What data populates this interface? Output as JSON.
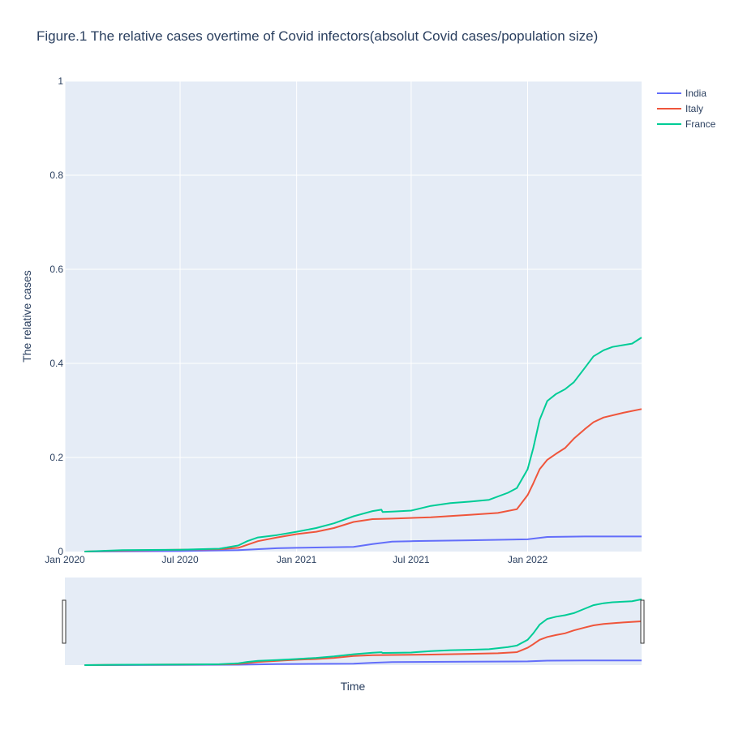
{
  "chart_data": {
    "type": "line",
    "title": "Figure.1 The relative cases overtime of Covid infectors(absolut Covid cases/population size)",
    "xlabel": "Time",
    "ylabel": "The relative cases",
    "xlim": [
      "2020-01-01",
      "2022-06-30"
    ],
    "ylim": [
      0,
      1
    ],
    "x_ticks": [
      {
        "date": "2020-01-01",
        "label": "Jan 2020"
      },
      {
        "date": "2020-07-01",
        "label": "Jul 2020"
      },
      {
        "date": "2021-01-01",
        "label": "Jan 2021"
      },
      {
        "date": "2021-07-01",
        "label": "Jul 2021"
      },
      {
        "date": "2022-01-01",
        "label": "Jan 2022"
      }
    ],
    "y_ticks": [
      {
        "value": 0,
        "label": "0"
      },
      {
        "value": 0.2,
        "label": "0.2"
      },
      {
        "value": 0.4,
        "label": "0.4"
      },
      {
        "value": 0.6,
        "label": "0.6"
      },
      {
        "value": 0.8,
        "label": "0.8"
      },
      {
        "value": 1,
        "label": "1"
      }
    ],
    "grid": true,
    "legend_position": "top-right",
    "range_slider": true,
    "series": [
      {
        "name": "India",
        "color": "#636efa",
        "points": [
          [
            "2020-02-01",
            0
          ],
          [
            "2020-07-01",
            0.001
          ],
          [
            "2020-10-01",
            0.003
          ],
          [
            "2020-12-01",
            0.007
          ],
          [
            "2021-01-01",
            0.008
          ],
          [
            "2021-04-01",
            0.01
          ],
          [
            "2021-05-01",
            0.016
          ],
          [
            "2021-06-01",
            0.021
          ],
          [
            "2021-07-01",
            0.022
          ],
          [
            "2021-10-01",
            0.024
          ],
          [
            "2022-01-01",
            0.026
          ],
          [
            "2022-02-01",
            0.031
          ],
          [
            "2022-04-01",
            0.032
          ],
          [
            "2022-06-30",
            0.032
          ]
        ]
      },
      {
        "name": "Italy",
        "color": "#ef553b",
        "points": [
          [
            "2020-02-01",
            0
          ],
          [
            "2020-04-01",
            0.002
          ],
          [
            "2020-07-01",
            0.004
          ],
          [
            "2020-09-01",
            0.005
          ],
          [
            "2020-10-01",
            0.008
          ],
          [
            "2020-11-01",
            0.022
          ],
          [
            "2020-12-01",
            0.03
          ],
          [
            "2021-01-01",
            0.037
          ],
          [
            "2021-02-01",
            0.042
          ],
          [
            "2021-03-01",
            0.05
          ],
          [
            "2021-04-01",
            0.063
          ],
          [
            "2021-05-01",
            0.069
          ],
          [
            "2021-06-01",
            0.07
          ],
          [
            "2021-08-01",
            0.073
          ],
          [
            "2021-10-01",
            0.078
          ],
          [
            "2021-11-15",
            0.082
          ],
          [
            "2021-12-15",
            0.09
          ],
          [
            "2022-01-01",
            0.12
          ],
          [
            "2022-01-10",
            0.145
          ],
          [
            "2022-01-20",
            0.175
          ],
          [
            "2022-02-01",
            0.195
          ],
          [
            "2022-02-15",
            0.208
          ],
          [
            "2022-03-01",
            0.22
          ],
          [
            "2022-03-15",
            0.24
          ],
          [
            "2022-04-01",
            0.26
          ],
          [
            "2022-04-15",
            0.275
          ],
          [
            "2022-05-01",
            0.285
          ],
          [
            "2022-06-01",
            0.295
          ],
          [
            "2022-06-30",
            0.303
          ]
        ]
      },
      {
        "name": "France",
        "color": "#00cc96",
        "points": [
          [
            "2020-02-01",
            0
          ],
          [
            "2020-04-01",
            0.003
          ],
          [
            "2020-07-01",
            0.004
          ],
          [
            "2020-09-01",
            0.006
          ],
          [
            "2020-10-01",
            0.013
          ],
          [
            "2020-10-15",
            0.022
          ],
          [
            "2020-11-01",
            0.03
          ],
          [
            "2020-12-01",
            0.035
          ],
          [
            "2021-01-01",
            0.042
          ],
          [
            "2021-02-01",
            0.05
          ],
          [
            "2021-03-01",
            0.06
          ],
          [
            "2021-04-01",
            0.075
          ],
          [
            "2021-05-01",
            0.086
          ],
          [
            "2021-05-15",
            0.089
          ],
          [
            "2021-05-17",
            0.084
          ],
          [
            "2021-06-01",
            0.085
          ],
          [
            "2021-07-01",
            0.087
          ],
          [
            "2021-08-01",
            0.097
          ],
          [
            "2021-09-01",
            0.103
          ],
          [
            "2021-10-01",
            0.106
          ],
          [
            "2021-11-01",
            0.11
          ],
          [
            "2021-12-01",
            0.125
          ],
          [
            "2021-12-15",
            0.135
          ],
          [
            "2022-01-01",
            0.175
          ],
          [
            "2022-01-10",
            0.22
          ],
          [
            "2022-01-20",
            0.28
          ],
          [
            "2022-02-01",
            0.32
          ],
          [
            "2022-02-15",
            0.335
          ],
          [
            "2022-03-01",
            0.345
          ],
          [
            "2022-03-15",
            0.36
          ],
          [
            "2022-04-01",
            0.39
          ],
          [
            "2022-04-15",
            0.415
          ],
          [
            "2022-05-01",
            0.428
          ],
          [
            "2022-05-15",
            0.435
          ],
          [
            "2022-06-15",
            0.442
          ],
          [
            "2022-06-30",
            0.455
          ]
        ]
      }
    ]
  }
}
